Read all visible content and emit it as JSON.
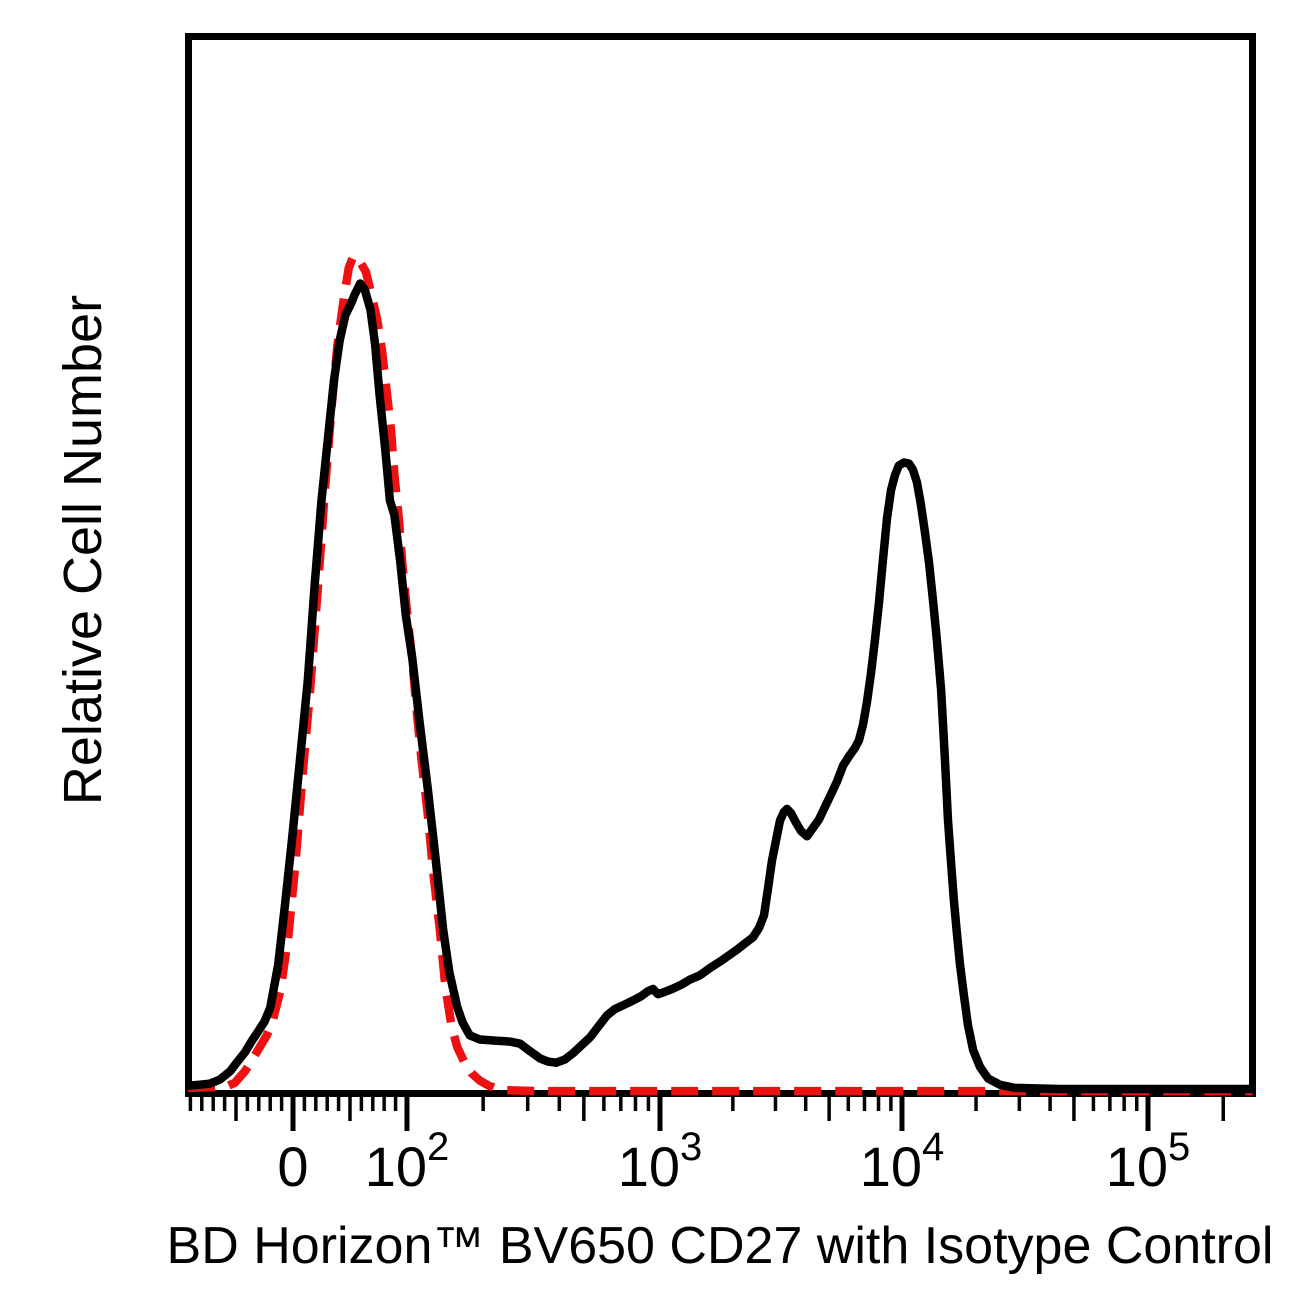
{
  "figure": {
    "background_color": "#ffffff",
    "x_axis_title": "BD Horizon™ BV650 CD27 with Isotype Control",
    "y_axis_title": "Relative Cell Number"
  },
  "chart_data": {
    "type": "line",
    "subtype": "flow-cytometry-histogram-overlay",
    "xlabel": "BD Horizon™ BV650 CD27 with Isotype Control",
    "ylabel": "Relative Cell Number",
    "grid": "off",
    "legend": "none",
    "colors": {
      "stained": "#000000",
      "isotype": "#ee1111",
      "frame": "#000000"
    },
    "y_axis": {
      "tick_labels": "none",
      "range_percent_of_max": [
        0,
        100
      ]
    },
    "x_axis": {
      "scale": "biexponential",
      "range": [
        -92,
        262144
      ],
      "anchors_u_frac": [
        [
          -0.921,
          0.0
        ],
        [
          0,
          0.0986
        ],
        [
          1,
          0.2056
        ],
        [
          2,
          0.4432
        ],
        [
          3,
          0.6704
        ],
        [
          4,
          0.9014
        ],
        [
          4.42,
          1.0
        ]
      ],
      "ticks": {
        "major": [
          {
            "value": 0,
            "label": "0"
          },
          {
            "value": 100,
            "base": "10",
            "exp": "2"
          },
          {
            "value": 1000,
            "base": "10",
            "exp": "3"
          },
          {
            "value": 10000,
            "base": "10",
            "exp": "4"
          },
          {
            "value": 100000,
            "base": "10",
            "exp": "5"
          }
        ],
        "medium": [
          -50,
          50,
          500,
          5000,
          50000,
          200000
        ],
        "minor": [
          -90,
          -80,
          -70,
          -60,
          -40,
          -30,
          -20,
          -10,
          10,
          20,
          30,
          40,
          60,
          70,
          80,
          90,
          200,
          300,
          400,
          600,
          700,
          800,
          900,
          2000,
          3000,
          4000,
          6000,
          7000,
          8000,
          9000,
          20000,
          30000,
          40000,
          60000,
          70000,
          80000,
          90000
        ]
      }
    },
    "series": [
      {
        "id": "isotype-control",
        "name": "Isotype Control",
        "color": "#ee1111",
        "style": "dashed",
        "dash": [
          27,
          14
        ],
        "line_width": 8.5,
        "points": [
          [
            -92,
            0.1
          ],
          [
            -59,
            0.2
          ],
          [
            -51,
            0.6
          ],
          [
            -42,
            1.7
          ],
          [
            -35,
            2.9
          ],
          [
            -29,
            4.0
          ],
          [
            -23,
            5.1
          ],
          [
            -18,
            6.4
          ],
          [
            -11,
            9.4
          ],
          [
            -4,
            14.6
          ],
          [
            2,
            21.3
          ],
          [
            8,
            29.3
          ],
          [
            15,
            37.9
          ],
          [
            22,
            47.9
          ],
          [
            28,
            56.9
          ],
          [
            34,
            65.0
          ],
          [
            39,
            70.7
          ],
          [
            45,
            75.4
          ],
          [
            49,
            78.0
          ],
          [
            53,
            79.1
          ],
          [
            58,
            78.7
          ],
          [
            64,
            77.6
          ],
          [
            69,
            75.4
          ],
          [
            74,
            73.0
          ],
          [
            78,
            70.2
          ],
          [
            82,
            66.4
          ],
          [
            86,
            62.6
          ],
          [
            89,
            58.3
          ],
          [
            93,
            54.0
          ],
          [
            96,
            49.8
          ],
          [
            100,
            45.3
          ],
          [
            105,
            40.7
          ],
          [
            109,
            36.2
          ],
          [
            114,
            31.4
          ],
          [
            121,
            26.0
          ],
          [
            127,
            20.6
          ],
          [
            135,
            15.1
          ],
          [
            142,
            9.6
          ],
          [
            150,
            6.0
          ],
          [
            158,
            4.0
          ],
          [
            168,
            2.6
          ],
          [
            180,
            1.5
          ],
          [
            194,
            0.8
          ],
          [
            211,
            0.3
          ],
          [
            235,
            -0.1
          ],
          [
            331,
            -0.2
          ],
          [
            1462,
            -0.2
          ],
          [
            9800,
            -0.2
          ],
          [
            63800,
            -0.2
          ],
          [
            262000,
            -0.2
          ]
        ]
      },
      {
        "id": "cd27-bv650",
        "name": "BV650 CD27",
        "color": "#000000",
        "style": "solid",
        "dash": null,
        "line_width": 8.5,
        "points": [
          [
            -92,
            0.3
          ],
          [
            -73,
            0.5
          ],
          [
            -64,
            0.9
          ],
          [
            -55,
            1.7
          ],
          [
            -48,
            2.7
          ],
          [
            -42,
            3.5
          ],
          [
            -36,
            4.6
          ],
          [
            -31,
            5.4
          ],
          [
            -25,
            6.4
          ],
          [
            -20,
            7.7
          ],
          [
            -13,
            11.8
          ],
          [
            -7,
            17.5
          ],
          [
            -1,
            23.6
          ],
          [
            6,
            31.1
          ],
          [
            13,
            38.8
          ],
          [
            19,
            47.9
          ],
          [
            25,
            55.9
          ],
          [
            31,
            62.1
          ],
          [
            36,
            67.3
          ],
          [
            41,
            71.1
          ],
          [
            46,
            73.5
          ],
          [
            51,
            74.6
          ],
          [
            54,
            75.4
          ],
          [
            59,
            76.5
          ],
          [
            63,
            75.9
          ],
          [
            68,
            74.0
          ],
          [
            72,
            70.7
          ],
          [
            76,
            65.9
          ],
          [
            81,
            60.7
          ],
          [
            85,
            55.9
          ],
          [
            89,
            54.5
          ],
          [
            94,
            50.2
          ],
          [
            99,
            45.0
          ],
          [
            105,
            40.9
          ],
          [
            112,
            35.0
          ],
          [
            121,
            28.4
          ],
          [
            130,
            21.7
          ],
          [
            139,
            15.1
          ],
          [
            147,
            11.1
          ],
          [
            158,
            7.8
          ],
          [
            166,
            6.3
          ],
          [
            177,
            5.1
          ],
          [
            194,
            4.7
          ],
          [
            223,
            4.6
          ],
          [
            255,
            4.5
          ],
          [
            280,
            4.3
          ],
          [
            306,
            3.6
          ],
          [
            336,
            2.9
          ],
          [
            361,
            2.6
          ],
          [
            388,
            2.5
          ],
          [
            421,
            2.8
          ],
          [
            453,
            3.4
          ],
          [
            492,
            4.2
          ],
          [
            529,
            4.9
          ],
          [
            569,
            5.9
          ],
          [
            618,
            7.0
          ],
          [
            664,
            7.6
          ],
          [
            721,
            8.0
          ],
          [
            782,
            8.4
          ],
          [
            841,
            8.8
          ],
          [
            897,
            9.3
          ],
          [
            938,
            9.5
          ],
          [
            982,
            9.0
          ],
          [
            1041,
            9.2
          ],
          [
            1122,
            9.5
          ],
          [
            1222,
            9.9
          ],
          [
            1331,
            10.4
          ],
          [
            1462,
            10.8
          ],
          [
            1611,
            11.5
          ],
          [
            1770,
            12.1
          ],
          [
            1928,
            12.7
          ],
          [
            2099,
            13.3
          ],
          [
            2266,
            13.9
          ],
          [
            2421,
            14.4
          ],
          [
            2565,
            15.3
          ],
          [
            2691,
            16.5
          ],
          [
            2796,
            19.1
          ],
          [
            2903,
            21.7
          ],
          [
            3015,
            23.6
          ],
          [
            3133,
            25.5
          ],
          [
            3252,
            26.3
          ],
          [
            3349,
            26.6
          ],
          [
            3477,
            26.2
          ],
          [
            3649,
            25.3
          ],
          [
            3827,
            24.5
          ],
          [
            4049,
            24.0
          ],
          [
            4288,
            24.8
          ],
          [
            4541,
            25.6
          ],
          [
            4808,
            26.8
          ],
          [
            5092,
            28.0
          ],
          [
            5388,
            29.2
          ],
          [
            5705,
            30.7
          ],
          [
            6041,
            31.6
          ],
          [
            6396,
            32.4
          ],
          [
            6640,
            33.1
          ],
          [
            6901,
            34.6
          ],
          [
            7165,
            36.7
          ],
          [
            7450,
            39.5
          ],
          [
            7730,
            42.6
          ],
          [
            8039,
            46.2
          ],
          [
            8341,
            50.2
          ],
          [
            8674,
            54.2
          ],
          [
            9020,
            56.9
          ],
          [
            9359,
            58.3
          ],
          [
            9700,
            59.2
          ],
          [
            10190,
            59.5
          ],
          [
            10670,
            59.4
          ],
          [
            11090,
            58.8
          ],
          [
            11510,
            57.6
          ],
          [
            11940,
            55.5
          ],
          [
            12390,
            52.9
          ],
          [
            12880,
            50.0
          ],
          [
            13370,
            46.4
          ],
          [
            13870,
            42.6
          ],
          [
            14420,
            37.9
          ],
          [
            14960,
            31.2
          ],
          [
            15380,
            25.5
          ],
          [
            15810,
            21.7
          ],
          [
            16260,
            17.9
          ],
          [
            16750,
            14.6
          ],
          [
            17220,
            11.8
          ],
          [
            17860,
            8.9
          ],
          [
            18540,
            6.1
          ],
          [
            19450,
            3.7
          ],
          [
            20750,
            2.1
          ],
          [
            22390,
            1.0
          ],
          [
            25000,
            0.4
          ],
          [
            28780,
            0.1
          ],
          [
            43850,
            0.0
          ],
          [
            101900,
            0.0
          ],
          [
            262000,
            0.0
          ]
        ]
      }
    ]
  }
}
